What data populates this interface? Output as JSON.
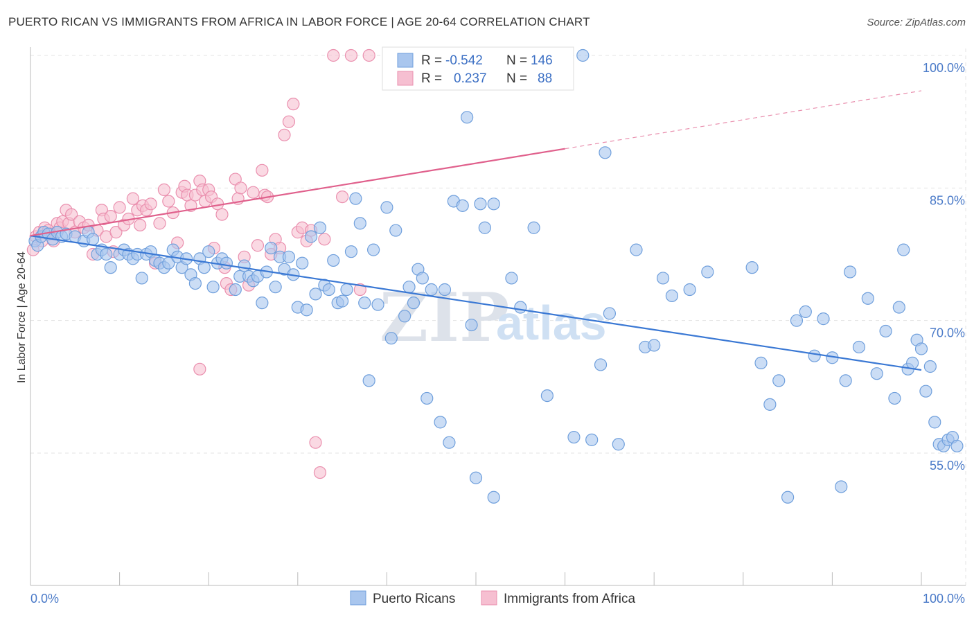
{
  "title": "PUERTO RICAN VS IMMIGRANTS FROM AFRICA IN LABOR FORCE | AGE 20-64 CORRELATION CHART",
  "source": "Source: ZipAtlas.com",
  "watermark": {
    "zip": "ZIP",
    "atlas": "atlas"
  },
  "colors": {
    "blue_fill": "#a9c6ee",
    "blue_stroke": "#6f9fdc",
    "blue_line": "#3a78d4",
    "pink_fill": "#f6bfd1",
    "pink_stroke": "#ea8fae",
    "pink_line": "#e0608c",
    "grid": "#e3e3e3",
    "tick_label": "#4a7ac8"
  },
  "legend": {
    "rows": [
      {
        "r_label": "R =",
        "r_value": "-0.542",
        "n_label": "N =",
        "n_value": "146"
      },
      {
        "r_label": "R =",
        "r_value": "0.237",
        "n_label": "N =",
        "n_value": "88"
      }
    ]
  },
  "chart_data": {
    "type": "scatter",
    "xlabel": "",
    "ylabel": "In Labor Force | Age 20-64",
    "xlim": [
      0,
      100
    ],
    "ylim": [
      40,
      102
    ],
    "x_tick_labels": [
      {
        "value": 0,
        "label": "0.0%"
      },
      {
        "value": 100,
        "label": "100.0%"
      }
    ],
    "y_tick_labels": [
      {
        "value": 100,
        "label": "100.0%"
      },
      {
        "value": 85,
        "label": "85.0%"
      },
      {
        "value": 70,
        "label": "70.0%"
      },
      {
        "value": 55,
        "label": "55.0%"
      }
    ],
    "grid": true,
    "legend_position": "top-center",
    "series": [
      {
        "name": "Puerto Ricans",
        "color": "#a9c6ee",
        "trend": {
          "x": [
            0,
            100
          ],
          "y": [
            79.6,
            64.4
          ],
          "dashed_from": null
        },
        "points": [
          [
            0.5,
            79.0
          ],
          [
            0.8,
            78.5
          ],
          [
            1.2,
            79.5
          ],
          [
            1.5,
            80.0
          ],
          [
            2.0,
            79.8
          ],
          [
            2.5,
            79.2
          ],
          [
            3,
            80.0
          ],
          [
            3.5,
            79.5
          ],
          [
            4,
            79.8
          ],
          [
            5,
            79.5
          ],
          [
            6,
            79.0
          ],
          [
            6.5,
            80.0
          ],
          [
            7,
            79.2
          ],
          [
            7.5,
            77.5
          ],
          [
            8,
            78.0
          ],
          [
            8.5,
            77.5
          ],
          [
            9,
            76.0
          ],
          [
            10,
            77.5
          ],
          [
            10.5,
            78.0
          ],
          [
            11,
            77.5
          ],
          [
            11.5,
            77.0
          ],
          [
            12,
            77.5
          ],
          [
            12.5,
            74.8
          ],
          [
            13,
            77.5
          ],
          [
            13.5,
            77.8
          ],
          [
            14,
            76.8
          ],
          [
            14.5,
            76.5
          ],
          [
            15,
            76.0
          ],
          [
            15.5,
            76.5
          ],
          [
            16,
            78.0
          ],
          [
            16.5,
            77.2
          ],
          [
            17,
            76.0
          ],
          [
            17.5,
            77.0
          ],
          [
            18,
            75.2
          ],
          [
            18.5,
            74.2
          ],
          [
            19,
            77.0
          ],
          [
            19.5,
            76.0
          ],
          [
            20,
            77.8
          ],
          [
            20.5,
            73.8
          ],
          [
            21,
            76.5
          ],
          [
            21.5,
            77.0
          ],
          [
            22,
            76.5
          ],
          [
            23,
            73.5
          ],
          [
            23.5,
            75.0
          ],
          [
            24,
            76.2
          ],
          [
            24.5,
            75.0
          ],
          [
            25,
            74.5
          ],
          [
            25.5,
            75.0
          ],
          [
            26,
            72.0
          ],
          [
            26.5,
            75.5
          ],
          [
            27,
            78.2
          ],
          [
            27.5,
            73.8
          ],
          [
            28,
            77.2
          ],
          [
            28.5,
            75.8
          ],
          [
            29,
            77.2
          ],
          [
            29.5,
            75.2
          ],
          [
            30,
            71.5
          ],
          [
            30.5,
            76.5
          ],
          [
            31,
            71.2
          ],
          [
            31.5,
            79.5
          ],
          [
            32,
            73.0
          ],
          [
            32.5,
            80.5
          ],
          [
            33,
            74.0
          ],
          [
            33.5,
            73.5
          ],
          [
            34,
            76.8
          ],
          [
            34.5,
            72.0
          ],
          [
            35,
            72.2
          ],
          [
            35.5,
            73.5
          ],
          [
            36,
            77.8
          ],
          [
            36.5,
            83.8
          ],
          [
            37,
            81.0
          ],
          [
            37.5,
            72.0
          ],
          [
            38,
            63.2
          ],
          [
            38.5,
            78.0
          ],
          [
            39,
            71.8
          ],
          [
            40,
            82.8
          ],
          [
            40.5,
            68.0
          ],
          [
            41,
            80.2
          ],
          [
            42,
            70.5
          ],
          [
            42.5,
            73.8
          ],
          [
            43,
            72.0
          ],
          [
            43.5,
            75.8
          ],
          [
            44,
            74.8
          ],
          [
            44.5,
            61.2
          ],
          [
            45,
            73.5
          ],
          [
            46,
            58.5
          ],
          [
            46.5,
            73.5
          ],
          [
            47,
            56.2
          ],
          [
            47.5,
            83.5
          ],
          [
            48.5,
            83.0
          ],
          [
            49,
            93.0
          ],
          [
            49.5,
            69.5
          ],
          [
            50,
            52.2
          ],
          [
            50.5,
            83.2
          ],
          [
            51,
            80.5
          ],
          [
            52,
            50.0
          ],
          [
            52,
            83.2
          ],
          [
            54,
            74.8
          ],
          [
            55,
            71.5
          ],
          [
            56.5,
            80.5
          ],
          [
            58,
            61.5
          ],
          [
            61,
            56.8
          ],
          [
            62,
            100.0
          ],
          [
            63,
            56.5
          ],
          [
            64,
            65.0
          ],
          [
            64.5,
            89.0
          ],
          [
            65,
            70.8
          ],
          [
            66,
            56.0
          ],
          [
            68,
            78.0
          ],
          [
            69,
            67.0
          ],
          [
            70,
            67.2
          ],
          [
            71,
            74.8
          ],
          [
            72,
            72.8
          ],
          [
            74,
            73.5
          ],
          [
            76,
            75.5
          ],
          [
            81,
            76.0
          ],
          [
            82,
            65.2
          ],
          [
            83,
            60.5
          ],
          [
            84,
            63.2
          ],
          [
            85,
            50.0
          ],
          [
            86,
            70.0
          ],
          [
            87,
            71.0
          ],
          [
            88,
            66.0
          ],
          [
            89,
            70.2
          ],
          [
            90,
            65.8
          ],
          [
            91,
            51.2
          ],
          [
            91.5,
            63.2
          ],
          [
            92,
            75.5
          ],
          [
            93,
            67.0
          ],
          [
            94,
            72.5
          ],
          [
            95,
            64.0
          ],
          [
            96,
            68.8
          ],
          [
            97,
            61.2
          ],
          [
            97.5,
            71.5
          ],
          [
            98,
            78.0
          ],
          [
            98.5,
            64.5
          ],
          [
            99,
            65.2
          ],
          [
            99.5,
            67.8
          ],
          [
            100,
            66.8
          ],
          [
            100.5,
            62.0
          ],
          [
            101,
            64.8
          ],
          [
            101.5,
            58.5
          ],
          [
            102,
            56.0
          ],
          [
            102.5,
            55.8
          ],
          [
            103,
            56.5
          ],
          [
            103.5,
            56.8
          ],
          [
            104,
            55.8
          ]
        ]
      },
      {
        "name": "Immigrants from Africa",
        "color": "#f6bfd1",
        "trend": {
          "x": [
            0,
            100
          ],
          "y": [
            79.6,
            96.0
          ],
          "dashed_from": 60
        },
        "points": [
          [
            0.3,
            78.0
          ],
          [
            0.6,
            79.5
          ],
          [
            1,
            80.0
          ],
          [
            1.3,
            79.0
          ],
          [
            1.6,
            80.5
          ],
          [
            2,
            80.2
          ],
          [
            2.3,
            79.8
          ],
          [
            2.6,
            79.0
          ],
          [
            3,
            81.0
          ],
          [
            3.3,
            80.5
          ],
          [
            3.6,
            81.2
          ],
          [
            4,
            82.5
          ],
          [
            4.3,
            81.0
          ],
          [
            4.6,
            82.0
          ],
          [
            5,
            80.0
          ],
          [
            5.5,
            81.2
          ],
          [
            6,
            80.5
          ],
          [
            6.5,
            80.8
          ],
          [
            7,
            77.5
          ],
          [
            7.5,
            80.2
          ],
          [
            8,
            82.5
          ],
          [
            8.2,
            81.5
          ],
          [
            8.5,
            79.5
          ],
          [
            9,
            81.8
          ],
          [
            9.3,
            77.8
          ],
          [
            9.6,
            80.0
          ],
          [
            10,
            82.8
          ],
          [
            10.5,
            80.8
          ],
          [
            11,
            81.5
          ],
          [
            11.5,
            83.8
          ],
          [
            12,
            82.5
          ],
          [
            12.3,
            80.8
          ],
          [
            12.6,
            83.0
          ],
          [
            13,
            82.5
          ],
          [
            13.5,
            83.2
          ],
          [
            14,
            76.5
          ],
          [
            14.5,
            81.0
          ],
          [
            15,
            84.8
          ],
          [
            15.5,
            83.5
          ],
          [
            16,
            82.2
          ],
          [
            16.5,
            78.8
          ],
          [
            17,
            84.5
          ],
          [
            17.3,
            85.2
          ],
          [
            17.6,
            84.2
          ],
          [
            18,
            83.0
          ],
          [
            18.5,
            84.2
          ],
          [
            19,
            85.8
          ],
          [
            19.3,
            84.8
          ],
          [
            19.6,
            83.5
          ],
          [
            20,
            84.8
          ],
          [
            20.3,
            84.0
          ],
          [
            20.6,
            78.2
          ],
          [
            21,
            83.2
          ],
          [
            21.5,
            82.0
          ],
          [
            21.8,
            76.0
          ],
          [
            22,
            74.2
          ],
          [
            22.5,
            73.5
          ],
          [
            23,
            86.0
          ],
          [
            23.3,
            83.8
          ],
          [
            23.6,
            85.0
          ],
          [
            24,
            77.2
          ],
          [
            24.5,
            74.0
          ],
          [
            25,
            84.5
          ],
          [
            25.5,
            78.5
          ],
          [
            26,
            87.0
          ],
          [
            26.3,
            84.2
          ],
          [
            26.6,
            84.0
          ],
          [
            27,
            77.5
          ],
          [
            27.5,
            79.2
          ],
          [
            28,
            78.2
          ],
          [
            28.5,
            91.0
          ],
          [
            29,
            92.5
          ],
          [
            29.5,
            94.5
          ],
          [
            30,
            80.0
          ],
          [
            30.5,
            80.5
          ],
          [
            31,
            79.0
          ],
          [
            31.5,
            80.2
          ],
          [
            32,
            56.2
          ],
          [
            32.5,
            52.8
          ],
          [
            33,
            79.2
          ],
          [
            34,
            100.0
          ],
          [
            35,
            84.0
          ],
          [
            36,
            100.0
          ],
          [
            37,
            73.5
          ],
          [
            38,
            100.0
          ],
          [
            19.0,
            64.5
          ]
        ]
      }
    ]
  },
  "bottom_legend": [
    {
      "label": "Puerto Ricans"
    },
    {
      "label": "Immigrants from Africa"
    }
  ]
}
